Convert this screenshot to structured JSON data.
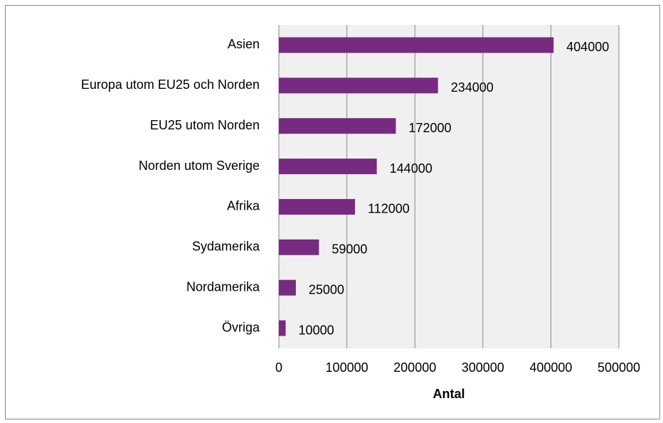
{
  "chart_data": {
    "type": "bar",
    "orientation": "horizontal",
    "categories": [
      "Asien",
      "Europa utom EU25 och Norden",
      "EU25 utom Norden",
      "Norden utom Sverige",
      "Afrika",
      "Sydamerika",
      "Nordamerika",
      "Övriga"
    ],
    "values": [
      404000,
      234000,
      172000,
      144000,
      112000,
      59000,
      25000,
      10000
    ],
    "color": "#772b80",
    "xlabel": "Antal",
    "xlim": [
      0,
      500000
    ],
    "xticks": [
      0,
      100000,
      200000,
      300000,
      400000,
      500000
    ],
    "grid": true
  }
}
